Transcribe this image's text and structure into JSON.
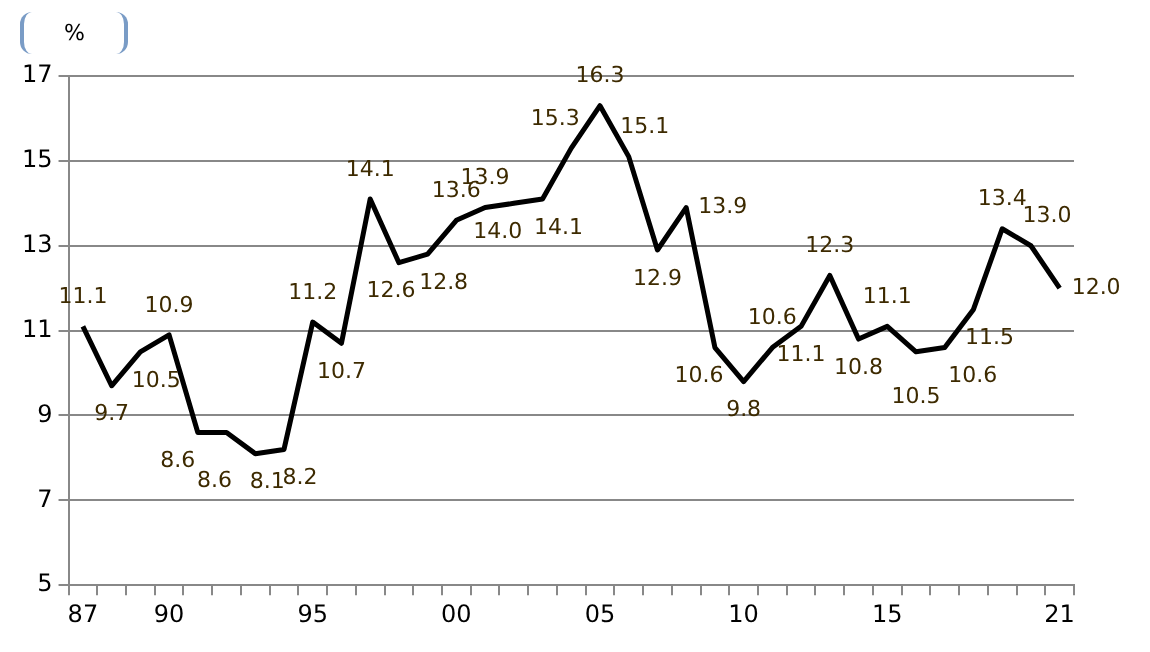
{
  "chart_data": {
    "type": "line",
    "ylabel": "%",
    "categories": [
      "87",
      null,
      null,
      "90",
      null,
      null,
      null,
      null,
      "95",
      null,
      null,
      null,
      null,
      "00",
      null,
      null,
      null,
      null,
      "05",
      null,
      null,
      null,
      null,
      "10",
      null,
      null,
      null,
      null,
      "15",
      null,
      null,
      null,
      null,
      null,
      "21"
    ],
    "series": [
      {
        "color": "#000000",
        "values": [
          11.1,
          9.7,
          10.5,
          10.9,
          8.6,
          8.6,
          8.1,
          8.2,
          11.2,
          10.7,
          14.1,
          12.6,
          12.8,
          13.6,
          13.9,
          14.0,
          14.1,
          15.3,
          16.3,
          15.1,
          12.9,
          13.9,
          10.6,
          9.8,
          10.6,
          11.1,
          12.3,
          10.8,
          11.1,
          10.5,
          10.6,
          11.5,
          13.4,
          13.0,
          12.0
        ],
        "value_labels": [
          "11.1",
          "9.7",
          "10.5",
          "10.9",
          "8.6",
          "8.6",
          "8.1",
          "8.2",
          "11.2",
          "10.7",
          "14.1",
          "12.6",
          "12.8",
          "13.6",
          "13.9",
          "14.0",
          "14.1",
          "15.3",
          "16.3",
          "15.1",
          "12.9",
          "13.9",
          "10.6",
          "9.8",
          "10.6",
          "11.1",
          "12.3",
          "10.8",
          "11.1",
          "10.5",
          "10.6",
          "11.5",
          "13.4",
          "13.0",
          "12.0"
        ]
      }
    ],
    "ylim": [
      5,
      17
    ],
    "yticks": [
      5,
      7,
      9,
      11,
      13,
      15,
      17
    ],
    "grid": "y",
    "legend": false,
    "marker": "none",
    "line_style": "solid"
  }
}
